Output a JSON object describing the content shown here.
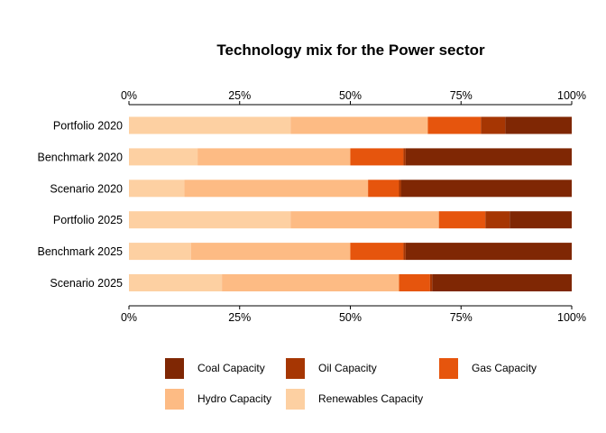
{
  "chart_data": {
    "type": "bar",
    "orientation": "horizontal",
    "stacked": true,
    "title": "Technology mix for the Power sector",
    "xlabel": "",
    "ylabel": "",
    "xlim": [
      0,
      100
    ],
    "x_ticks": [
      "0%",
      "25%",
      "50%",
      "75%",
      "100%"
    ],
    "x_tick_values": [
      0,
      25,
      50,
      75,
      100
    ],
    "categories": [
      "Portfolio 2020",
      "Benchmark 2020",
      "Scenario 2020",
      "Portfolio 2025",
      "Benchmark 2025",
      "Scenario 2025"
    ],
    "series": [
      {
        "name": "Renewables Capacity",
        "color": "#fdd0a2",
        "values": [
          36.5,
          15.5,
          12.5,
          36.5,
          14.0,
          21.0
        ]
      },
      {
        "name": "Hydro Capacity",
        "color": "#fdbb84",
        "values": [
          31.0,
          34.5,
          41.5,
          33.5,
          36.0,
          40.0
        ]
      },
      {
        "name": "Gas Capacity",
        "color": "#e6550d",
        "values": [
          12.0,
          12.0,
          7.0,
          10.5,
          12.0,
          7.0
        ]
      },
      {
        "name": "Oil Capacity",
        "color": "#a63603",
        "values": [
          5.5,
          0.5,
          0.5,
          5.5,
          0.5,
          0.5
        ]
      },
      {
        "name": "Coal Capacity",
        "color": "#7f2704",
        "values": [
          15.0,
          37.5,
          38.5,
          14.0,
          37.5,
          31.5
        ]
      }
    ],
    "legend": {
      "position": "bottom",
      "items": [
        {
          "label": "Coal Capacity",
          "color": "#7f2704"
        },
        {
          "label": "Oil Capacity",
          "color": "#a63603"
        },
        {
          "label": "Gas Capacity",
          "color": "#e6550d"
        },
        {
          "label": "Hydro Capacity",
          "color": "#fdbb84"
        },
        {
          "label": "Renewables Capacity",
          "color": "#fdd0a2"
        }
      ]
    },
    "grid": false
  }
}
